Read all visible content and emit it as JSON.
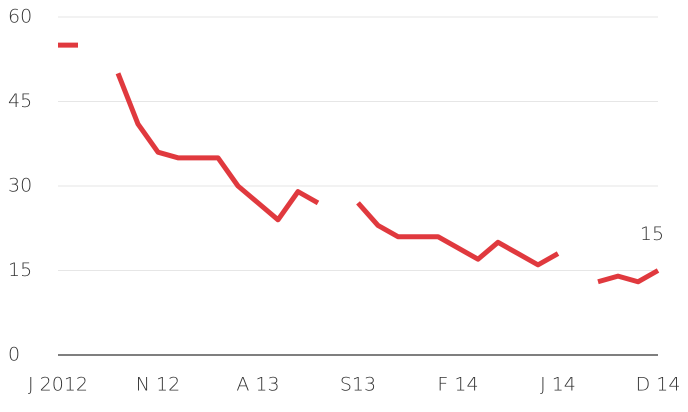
{
  "chart_data": {
    "type": "line",
    "categories": [
      "J 2012",
      null,
      null,
      null,
      null,
      "N 12",
      null,
      null,
      null,
      null,
      "A 13",
      null,
      null,
      null,
      null,
      "S13",
      null,
      null,
      null,
      null,
      "F 14",
      null,
      null,
      null,
      null,
      "J 14",
      null,
      null,
      null,
      null,
      "D 14"
    ],
    "series": [
      {
        "name": null,
        "color": "#e0393e",
        "values": [
          55,
          55,
          null,
          50,
          41,
          36,
          35,
          35,
          35,
          30,
          27,
          24,
          29,
          27,
          null,
          27,
          23,
          21,
          21,
          21,
          19,
          17,
          20,
          18,
          16,
          18,
          null,
          13,
          14,
          13,
          15
        ]
      }
    ],
    "ylim": [
      0,
      60
    ],
    "yticks": [
      0,
      15,
      30,
      45,
      60
    ],
    "grid": true
  }
}
